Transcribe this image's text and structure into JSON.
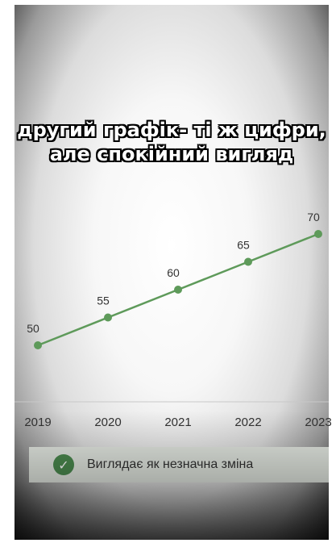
{
  "caption": {
    "line1": "другий графік- ті ж цифри,",
    "line2": "але спокійний вигляд"
  },
  "chart_data": {
    "type": "line",
    "categories": [
      "2019",
      "2020",
      "2021",
      "2022",
      "2023"
    ],
    "values": [
      50,
      55,
      60,
      65,
      70
    ],
    "data_labels": [
      "50",
      "55",
      "60",
      "65",
      "70"
    ],
    "title": "",
    "xlabel": "",
    "ylabel": "",
    "ylim": [
      30,
      80
    ],
    "grid": false,
    "line_color": "#5e9a5a"
  },
  "banner": {
    "icon": "check-icon",
    "text": "Виглядає як незначна зміна",
    "icon_color": "#4b8a4f"
  }
}
